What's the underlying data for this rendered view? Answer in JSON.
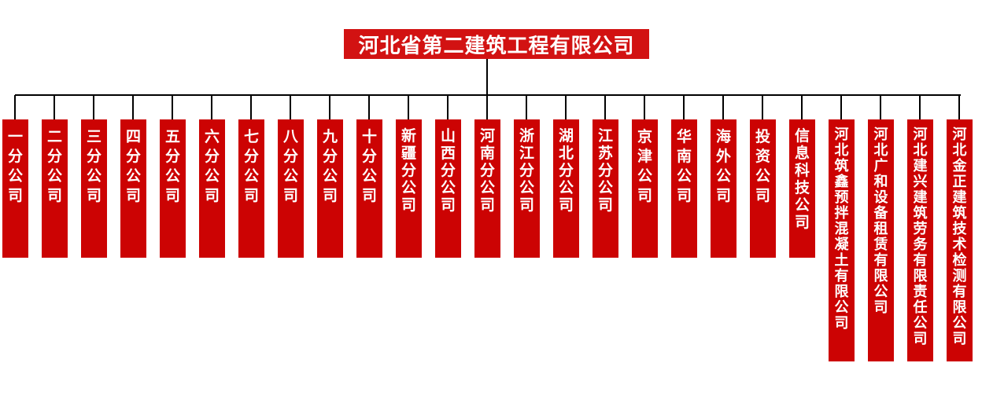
{
  "org_chart": {
    "root": {
      "name": "河北省第二建筑工程有限公司"
    },
    "subsidiaries": [
      {
        "name": "一分公司"
      },
      {
        "name": "二分公司"
      },
      {
        "name": "三分公司"
      },
      {
        "name": "四分公司"
      },
      {
        "name": "五分公司"
      },
      {
        "name": "六分公司"
      },
      {
        "name": "七分公司"
      },
      {
        "name": "八分公司"
      },
      {
        "name": "九分公司"
      },
      {
        "name": "十分公司"
      },
      {
        "name": "新疆分公司"
      },
      {
        "name": "山西分公司"
      },
      {
        "name": "河南分公司"
      },
      {
        "name": "浙江分公司"
      },
      {
        "name": "湖北分公司"
      },
      {
        "name": "江苏分公司"
      },
      {
        "name": "京津公司"
      },
      {
        "name": "华南公司"
      },
      {
        "name": "海外公司"
      },
      {
        "name": "投资公司"
      },
      {
        "name": "信息科技公司"
      },
      {
        "name": "河北筑鑫预拌混凝土有限公司"
      },
      {
        "name": "河北广和设备租赁有限公司"
      },
      {
        "name": "河北建兴建筑劳务有限责任公司"
      },
      {
        "name": "河北金正建筑技术检测有限公司"
      }
    ]
  },
  "colors": {
    "node_red": "#cc0303",
    "header_red": "#d21212",
    "line_black": "#000000",
    "text_white": "#ffffff"
  }
}
